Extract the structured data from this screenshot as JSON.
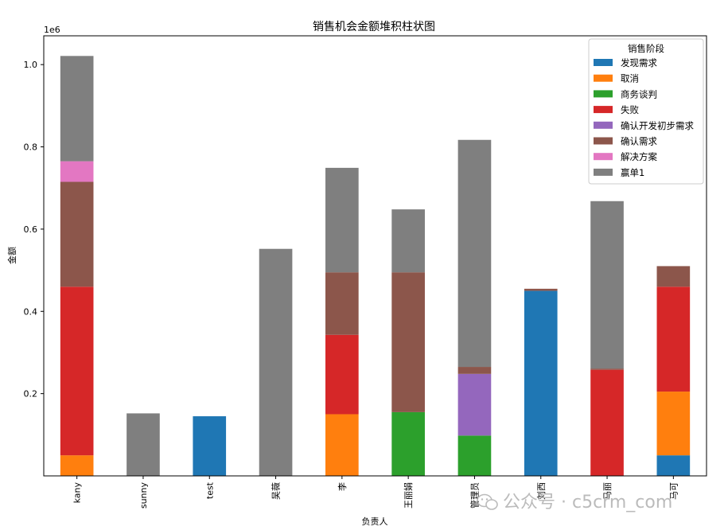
{
  "chart_data": {
    "type": "bar",
    "stacked": true,
    "title": "销售机会金额堆积柱状图",
    "xlabel": "负责人",
    "ylabel": "金额",
    "y_offset_label": "1e6",
    "ylim": [
      0,
      1.07
    ],
    "y_ticks": [
      "0.2",
      "0.4",
      "0.6",
      "0.8",
      "1.0"
    ],
    "y_tick_values": [
      0.2,
      0.4,
      0.6,
      0.8,
      1.0
    ],
    "categories": [
      "kany",
      "sunny",
      "test",
      "吴薇",
      "李",
      "王丽娟",
      "管理员",
      "刘西",
      "马丽",
      "马可"
    ],
    "legend": {
      "title": "销售阶段",
      "position": "upper-right"
    },
    "series": [
      {
        "name": "发现需求",
        "color": "#1f77b4",
        "values": [
          0,
          0,
          0.145,
          0,
          0,
          0,
          0,
          0.45,
          0,
          0.05
        ]
      },
      {
        "name": "取消",
        "color": "#ff7f0e",
        "values": [
          0.05,
          0,
          0,
          0,
          0.15,
          0,
          0,
          0,
          0,
          0.155
        ]
      },
      {
        "name": "商务谈判",
        "color": "#2ca02c",
        "values": [
          0,
          0,
          0,
          0,
          0,
          0.155,
          0.098,
          0,
          0,
          0
        ]
      },
      {
        "name": "失败",
        "color": "#d62728",
        "values": [
          0.41,
          0,
          0,
          0,
          0.193,
          0,
          0,
          0,
          0.258,
          0.255
        ]
      },
      {
        "name": "确认开发初步需求",
        "color": "#9467bd",
        "values": [
          0,
          0,
          0,
          0,
          0,
          0,
          0.15,
          0,
          0,
          0
        ]
      },
      {
        "name": "确认需求",
        "color": "#8c564b",
        "values": [
          0.255,
          0,
          0,
          0,
          0.152,
          0.34,
          0.017,
          0.005,
          0.003,
          0.05
        ]
      },
      {
        "name": "解决方案",
        "color": "#e377c2",
        "values": [
          0.05,
          0,
          0,
          0,
          0,
          0,
          0,
          0,
          0,
          0
        ]
      },
      {
        "name": "赢单1",
        "color": "#7f7f7f",
        "values": [
          0.256,
          0.152,
          0,
          0.552,
          0.254,
          0.153,
          0.552,
          0,
          0.407,
          0
        ]
      }
    ]
  },
  "watermark": {
    "text": "公众号 · c5crm_com",
    "icon": "wechat-icon"
  }
}
